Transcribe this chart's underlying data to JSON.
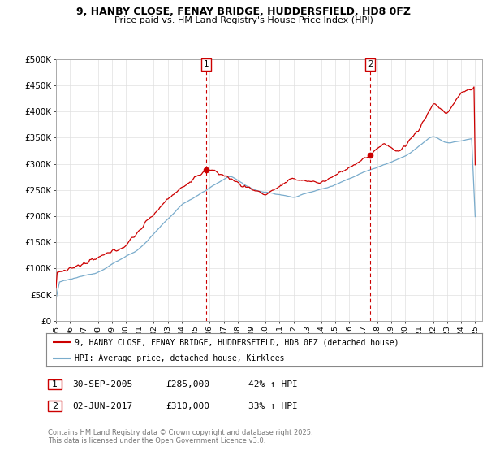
{
  "title_line1": "9, HANBY CLOSE, FENAY BRIDGE, HUDDERSFIELD, HD8 0FZ",
  "title_line2": "Price paid vs. HM Land Registry's House Price Index (HPI)",
  "yticks": [
    0,
    50000,
    100000,
    150000,
    200000,
    250000,
    300000,
    350000,
    400000,
    450000,
    500000
  ],
  "ytick_labels": [
    "£0",
    "£50K",
    "£100K",
    "£150K",
    "£200K",
    "£250K",
    "£300K",
    "£350K",
    "£400K",
    "£450K",
    "£500K"
  ],
  "red_color": "#cc0000",
  "blue_color": "#7aaccc",
  "legend_line1": "9, HANBY CLOSE, FENAY BRIDGE, HUDDERSFIELD, HD8 0FZ (detached house)",
  "legend_line2": "HPI: Average price, detached house, Kirklees",
  "copyright_text": "Contains HM Land Registry data © Crown copyright and database right 2025.\nThis data is licensed under the Open Government Licence v3.0.",
  "background_color": "#ffffff",
  "grid_color": "#e0e0e0"
}
